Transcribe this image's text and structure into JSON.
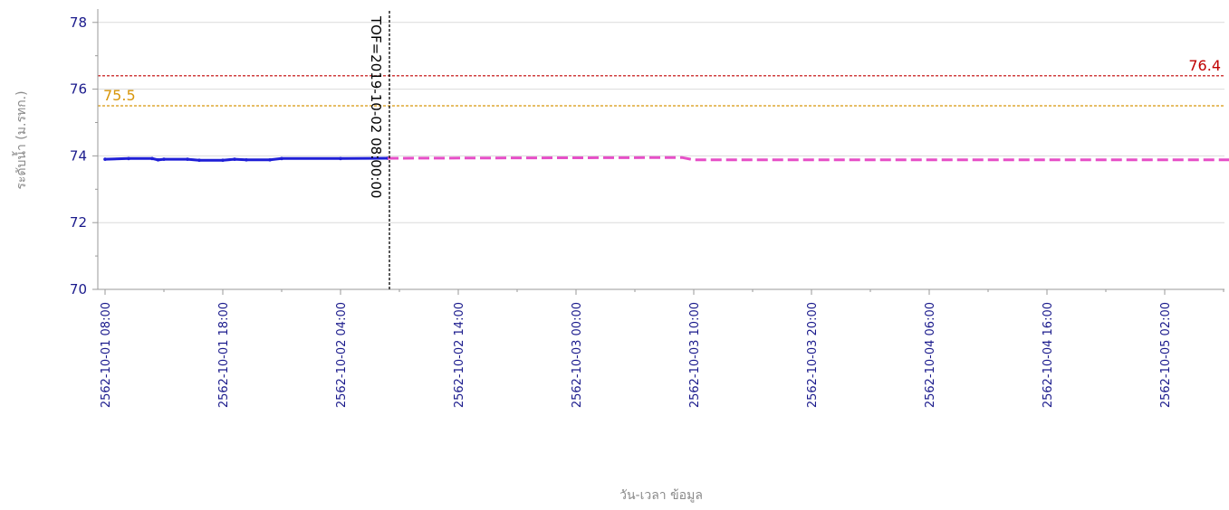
{
  "chart_data": {
    "type": "line",
    "xlabel": "วัน-เวลา ข้อมูล",
    "ylabel": "ระดับน้ำ (ม.รทก.)",
    "ylim": [
      70,
      78.4
    ],
    "xlim_hours": [
      0,
      100
    ],
    "yticks": [
      70,
      72,
      74,
      76,
      78
    ],
    "xticks": [
      {
        "label": "2562-10-01 08:00",
        "hours": 0
      },
      {
        "label": "2562-10-01 18:00",
        "hours": 10
      },
      {
        "label": "2562-10-02 04:00",
        "hours": 20
      },
      {
        "label": "2562-10-02 14:00",
        "hours": 30
      },
      {
        "label": "2562-10-03 00:00",
        "hours": 40
      },
      {
        "label": "2562-10-03 10:00",
        "hours": 50
      },
      {
        "label": "2562-10-03 20:00",
        "hours": 60
      },
      {
        "label": "2562-10-04 06:00",
        "hours": 70
      },
      {
        "label": "2562-10-04 16:00",
        "hours": 80
      },
      {
        "label": "2562-10-05 02:00",
        "hours": 90
      }
    ],
    "grid": true,
    "series": [
      {
        "values": [
          [
            0,
            73.9
          ],
          [
            2,
            73.92
          ],
          [
            4,
            73.92
          ],
          [
            4.5,
            73.88
          ],
          [
            5,
            73.9
          ],
          [
            7,
            73.9
          ],
          [
            8,
            73.87
          ],
          [
            10,
            73.87
          ],
          [
            11,
            73.9
          ],
          [
            12,
            73.88
          ],
          [
            14,
            73.88
          ],
          [
            15,
            73.92
          ],
          [
            20,
            73.92
          ],
          [
            24,
            73.93
          ]
        ],
        "color": "#1f1fd6"
      },
      {
        "values": [
          [
            24,
            73.93
          ],
          [
            49,
            73.95
          ],
          [
            50,
            73.88
          ],
          [
            100,
            73.88
          ]
        ],
        "color": "#e64fc7"
      }
    ],
    "reference_lines": [
      {
        "value": 76.4,
        "label": "76.4",
        "color": "#c00000"
      },
      {
        "value": 75.5,
        "label": "75.5",
        "color": "#d8960a"
      }
    ],
    "annotation": {
      "label": "TOF=2019-10-02 08:00:00",
      "hours": 24
    }
  }
}
